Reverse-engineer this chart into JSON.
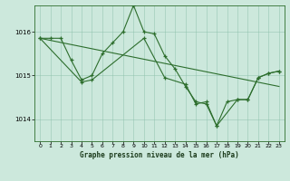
{
  "title": "Graphe pression niveau de la mer (hPa)",
  "background_color": "#cce8dc",
  "line_color": "#2d6e2d",
  "ylim": [
    1013.5,
    1016.6
  ],
  "yticks": [
    1014,
    1015,
    1016
  ],
  "xlim": [
    -0.5,
    23.5
  ],
  "xticks": [
    0,
    1,
    2,
    3,
    4,
    5,
    6,
    7,
    8,
    9,
    10,
    11,
    12,
    13,
    14,
    15,
    16,
    17,
    18,
    19,
    20,
    21,
    22,
    23
  ],
  "series1_x": [
    0,
    1,
    2,
    3,
    4,
    5,
    6,
    7,
    8,
    9,
    10,
    11,
    12,
    13,
    14,
    15,
    16,
    17,
    18,
    19,
    20,
    21,
    22,
    23
  ],
  "series1_y": [
    1015.85,
    1015.85,
    1015.85,
    1015.35,
    1014.9,
    1015.0,
    1015.5,
    1015.75,
    1016.0,
    1016.6,
    1016.0,
    1015.95,
    1015.45,
    1015.15,
    1014.75,
    1014.4,
    1014.35,
    1013.85,
    1014.4,
    1014.45,
    1014.45,
    1014.95,
    1015.05,
    1015.1
  ],
  "series2_x": [
    0,
    4,
    5,
    10,
    12,
    14,
    15,
    16,
    17,
    19,
    20,
    21,
    22,
    23
  ],
  "series2_y": [
    1015.85,
    1014.85,
    1014.9,
    1015.85,
    1014.95,
    1014.8,
    1014.35,
    1014.4,
    1013.85,
    1014.45,
    1014.45,
    1014.95,
    1015.05,
    1015.1
  ],
  "trendline_x": [
    0,
    23
  ],
  "trendline_y": [
    1015.85,
    1014.75
  ]
}
